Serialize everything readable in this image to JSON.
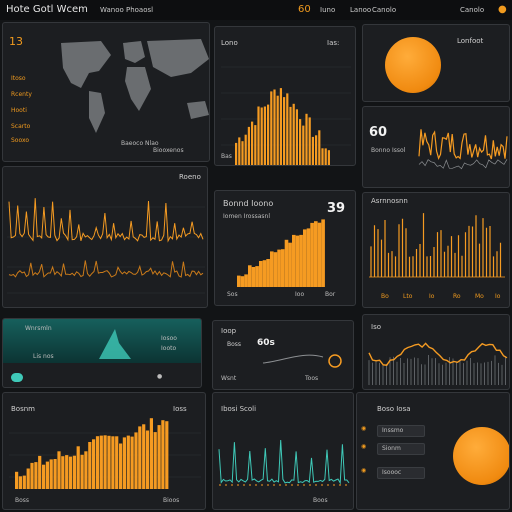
{
  "header": {
    "title": "Hote Gotl Wcem",
    "center_left": "Wanoo Phoaosl",
    "right_badge": "60",
    "right_a": "Iuno",
    "right_b": "Lanoo",
    "right_c": "Canolo",
    "accent": "#f09a1e"
  },
  "map_panel": {
    "number": "13",
    "labels": [
      "Itoso",
      "Rcenty",
      "Hooti",
      "Scarto",
      "Sooxo"
    ],
    "footer_a": "Baeoco Nlao",
    "footer_b": "Biooxenos",
    "icon": "world-map"
  },
  "bars_top": {
    "title": "Lono",
    "corner": "Ias:",
    "footer": "Bas"
  },
  "orb_top": {
    "title": "Lonfoot"
  },
  "cloud_panel": {
    "big": "60",
    "small": "Bonno Issol"
  },
  "wave_panel": {
    "title": "Roeno"
  },
  "area_panel": {
    "title": "Bonnd Ioono",
    "sub": "Iomen Irossasnl",
    "big": "39",
    "labels": [
      "Sos",
      "Ioo",
      "Bor"
    ]
  },
  "right_mid": {
    "title": "Asrnnosnn",
    "labels": [
      "Bo",
      "Lto",
      "Io",
      "Ro",
      "Mo",
      "Io"
    ]
  },
  "teal_panel": {
    "label": "Wnrsmln",
    "sub": "Lis nos",
    "row_a": "Iosoo",
    "row_b": "Iooto"
  },
  "mini_panel": {
    "title": "Ioop",
    "sub": "Boss",
    "big": "60s",
    "labels": [
      "Wsnt",
      "Toos"
    ]
  },
  "wave_right": {
    "title": "Iso"
  },
  "bars_bottom": {
    "title": "Bosnm",
    "corner": "Ioss",
    "footer_a": "Boss",
    "footer_b": "Bioos"
  },
  "line_bottom": {
    "title": "Ibosi Scoli",
    "footer": "Boos"
  },
  "orb_bottom": {
    "title": "Boso Iosa",
    "rows": [
      "Inssmo",
      "Sionm",
      "Isoooc"
    ]
  }
}
